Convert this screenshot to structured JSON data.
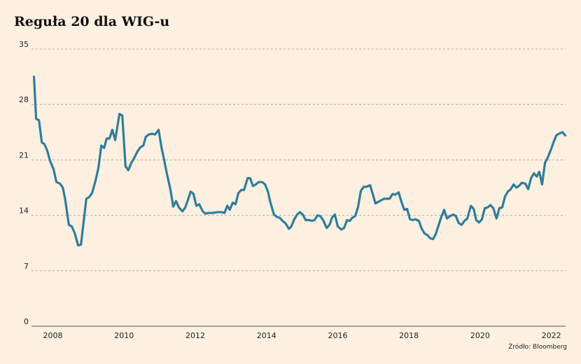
{
  "chart_data": {
    "type": "line",
    "title": "Reguła 20 dla WIG-u",
    "source": "Źródło: Bloomberg",
    "x": [
      2007.47,
      2007.53,
      2007.61,
      2007.69,
      2007.76,
      2007.84,
      2007.92,
      2008.02,
      2008.1,
      2008.2,
      2008.28,
      2008.35,
      2008.45,
      2008.53,
      2008.61,
      2008.71,
      2008.79,
      2008.87,
      2008.94,
      2009.02,
      2009.1,
      2009.2,
      2009.28,
      2009.36,
      2009.44,
      2009.51,
      2009.59,
      2009.67,
      2009.75,
      2009.87,
      2009.95,
      2010.04,
      2010.12,
      2010.2,
      2010.28,
      2010.38,
      2010.46,
      2010.54,
      2010.61,
      2010.69,
      2010.79,
      2010.87,
      2010.97,
      2011.05,
      2011.13,
      2011.2,
      2011.3,
      2011.38,
      2011.46,
      2011.54,
      2011.64,
      2011.72,
      2011.79,
      2011.87,
      2011.95,
      2012.03,
      2012.11,
      2012.21,
      2012.29,
      2012.36,
      2012.48,
      2012.62,
      2012.74,
      2012.82,
      2012.9,
      2012.97,
      2013.05,
      2013.13,
      2013.21,
      2013.29,
      2013.37,
      2013.47,
      2013.54,
      2013.62,
      2013.7,
      2013.78,
      2013.88,
      2013.96,
      2014.04,
      2014.11,
      2014.21,
      2014.29,
      2014.37,
      2014.45,
      2014.53,
      2014.63,
      2014.7,
      2014.78,
      2014.86,
      2014.94,
      2015.02,
      2015.1,
      2015.2,
      2015.27,
      2015.35,
      2015.43,
      2015.51,
      2015.59,
      2015.69,
      2015.77,
      2015.84,
      2015.92,
      2016.0,
      2016.1,
      2016.18,
      2016.26,
      2016.34,
      2016.41,
      2016.49,
      2016.57,
      2016.65,
      2016.73,
      2016.81,
      2016.91,
      2016.99,
      2017.06,
      2017.14,
      2017.22,
      2017.3,
      2017.38,
      2017.46,
      2017.54,
      2017.61,
      2017.71,
      2017.79,
      2017.87,
      2017.95,
      2018.03,
      2018.11,
      2018.18,
      2018.28,
      2018.36,
      2018.44,
      2018.52,
      2018.6,
      2018.68,
      2018.75,
      2018.83,
      2018.91,
      2018.99,
      2019.07,
      2019.15,
      2019.25,
      2019.32,
      2019.4,
      2019.48,
      2019.56,
      2019.64,
      2019.74,
      2019.82,
      2019.89,
      2019.97,
      2020.05,
      2020.13,
      2020.21,
      2020.29,
      2020.37,
      2020.46,
      2020.54,
      2020.62,
      2020.7,
      2020.78,
      2020.86,
      2020.94,
      2021.02,
      2021.09,
      2021.17,
      2021.27,
      2021.35,
      2021.43,
      2021.51,
      2021.59,
      2021.66,
      2021.74,
      2021.82,
      2021.9,
      2021.98,
      2022.06,
      2022.14,
      2022.21,
      2022.31,
      2022.39
    ],
    "series": [
      {
        "name": "WIG",
        "color": "#2f7d9b",
        "values": [
          31.5,
          26.2,
          26.0,
          23.2,
          23.0,
          22.2,
          20.9,
          19.8,
          18.2,
          18.0,
          17.5,
          15.9,
          12.8,
          12.6,
          11.8,
          10.2,
          10.3,
          13.4,
          16.1,
          16.3,
          16.8,
          18.4,
          20.0,
          22.8,
          22.5,
          23.7,
          23.7,
          24.8,
          23.5,
          26.8,
          26.6,
          20.2,
          19.7,
          20.6,
          21.2,
          22.1,
          22.6,
          22.8,
          23.9,
          24.2,
          24.3,
          24.2,
          24.8,
          22.6,
          20.9,
          19.3,
          17.3,
          15.1,
          15.8,
          15.0,
          14.5,
          15.0,
          15.9,
          17.0,
          16.7,
          15.2,
          15.4,
          14.5,
          14.2,
          14.3,
          14.3,
          14.4,
          14.4,
          14.3,
          15.2,
          14.7,
          15.6,
          15.4,
          16.8,
          17.2,
          17.2,
          18.7,
          18.7,
          17.7,
          17.9,
          18.2,
          18.2,
          17.9,
          17.0,
          15.6,
          14.1,
          13.8,
          13.7,
          13.3,
          13.0,
          12.3,
          12.6,
          13.5,
          14.1,
          14.4,
          14.1,
          13.4,
          13.4,
          13.3,
          13.4,
          14.0,
          13.9,
          13.4,
          12.4,
          12.8,
          13.7,
          14.1,
          12.6,
          12.2,
          12.4,
          13.4,
          13.3,
          13.7,
          13.9,
          15.0,
          17.1,
          17.6,
          17.6,
          17.8,
          16.6,
          15.5,
          15.7,
          15.9,
          16.1,
          16.1,
          16.1,
          16.7,
          16.6,
          16.9,
          15.7,
          14.7,
          14.8,
          13.5,
          13.4,
          13.5,
          13.3,
          12.3,
          11.7,
          11.5,
          11.1,
          11.0,
          11.6,
          12.7,
          13.8,
          14.7,
          13.6,
          13.9,
          14.1,
          13.9,
          13.0,
          12.8,
          13.3,
          13.6,
          15.2,
          14.8,
          13.4,
          13.1,
          13.5,
          14.9,
          15.0,
          15.3,
          14.9,
          13.6,
          14.9,
          15.0,
          16.4,
          17.0,
          17.3,
          17.9,
          17.5,
          17.7,
          18.1,
          18.0,
          17.3,
          18.7,
          19.3,
          18.9,
          19.5,
          17.9,
          20.6,
          21.3,
          22.2,
          23.2,
          24.1,
          24.3,
          24.5,
          24.1
        ]
      }
    ],
    "xlim": [
      2007.4,
      2022.4
    ],
    "xticks": [
      2008,
      2010,
      2012,
      2014,
      2016,
      2018,
      2020,
      2022
    ],
    "ylim": [
      0,
      35
    ],
    "yticks": [
      0,
      7,
      14,
      21,
      28,
      35
    ],
    "grid": true
  }
}
